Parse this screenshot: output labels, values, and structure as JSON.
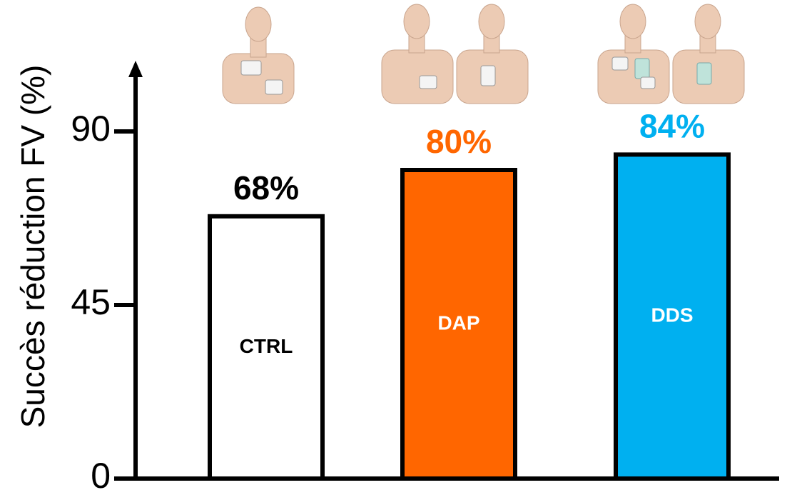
{
  "chart_data": {
    "type": "bar",
    "y_label": "Succès réduction  FV (%)",
    "categories": [
      "CTRL",
      "DAP",
      "DDS"
    ],
    "values": [
      68,
      80,
      84
    ],
    "value_labels": [
      "68%",
      "80%",
      "84%"
    ],
    "colors": [
      "#ffffff",
      "#ff6600",
      "#00b0f0"
    ],
    "category_label_colors": [
      "#000000",
      "#ffffff",
      "#ffffff"
    ],
    "value_label_colors": [
      "#000000",
      "#ff6600",
      "#00b0f0"
    ],
    "ylim": [
      0,
      105
    ],
    "yticks": [
      0,
      45,
      90
    ],
    "grid": false
  }
}
